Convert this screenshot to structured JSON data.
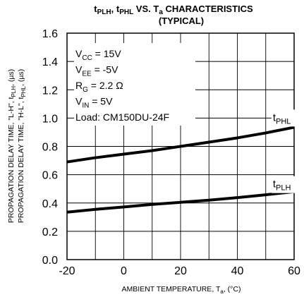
{
  "chart_data": {
    "type": "line",
    "title": {
      "main_a": "t",
      "main_a_sub": "PLH",
      "main_b": ",  t",
      "main_b_sub": "PHL",
      "main_c": " VS. T",
      "main_c_sub": "a",
      "main_d": " CHARACTERISTICS",
      "line2": "(TYPICAL)"
    },
    "xlabel": {
      "text": "AMBIENT TEMPERATURE, T",
      "sub": "a",
      "unit": ", (°C)"
    },
    "ylabel": {
      "line1_a": "PROPAGATION DELAY TIME, \"L-H\", t",
      "line1_sub": "PLH",
      "line1_b": ", (µs)",
      "line2_a": "PROPAGATION DELAY TIME, \"H-L\", t",
      "line2_sub": "PHL",
      "line2_b": ", (µs)"
    },
    "xlim": [
      -20,
      60
    ],
    "ylim": [
      0.0,
      1.6
    ],
    "x_ticks": [
      "-20",
      "0",
      "20",
      "40",
      "60"
    ],
    "y_ticks": [
      "0.0",
      "0.2",
      "0.4",
      "0.6",
      "0.8",
      "1.0",
      "1.2",
      "1.4",
      "1.6"
    ],
    "grid": true,
    "conditions": [
      {
        "a": "V",
        "sub": "CC",
        "b": " = 15V"
      },
      {
        "a": "V",
        "sub": "EE",
        "b": " = -5V"
      },
      {
        "a": "R",
        "sub": "G",
        "b": " = 2.2 Ω"
      },
      {
        "a": "V",
        "sub": "IN",
        "b": " = 5V"
      },
      {
        "a": "Load: CM150DU-24F",
        "sub": "",
        "b": ""
      }
    ],
    "series": [
      {
        "name": "t",
        "name_sub": "PHL",
        "x": [
          -20,
          -10,
          0,
          10,
          20,
          30,
          40,
          50,
          60
        ],
        "y": [
          0.69,
          0.72,
          0.745,
          0.77,
          0.8,
          0.83,
          0.86,
          0.895,
          0.935
        ]
      },
      {
        "name": "t",
        "name_sub": "PLH",
        "x": [
          -20,
          -10,
          0,
          10,
          20,
          30,
          40,
          50,
          60
        ],
        "y": [
          0.335,
          0.355,
          0.372,
          0.39,
          0.405,
          0.42,
          0.438,
          0.458,
          0.48
        ]
      }
    ]
  }
}
